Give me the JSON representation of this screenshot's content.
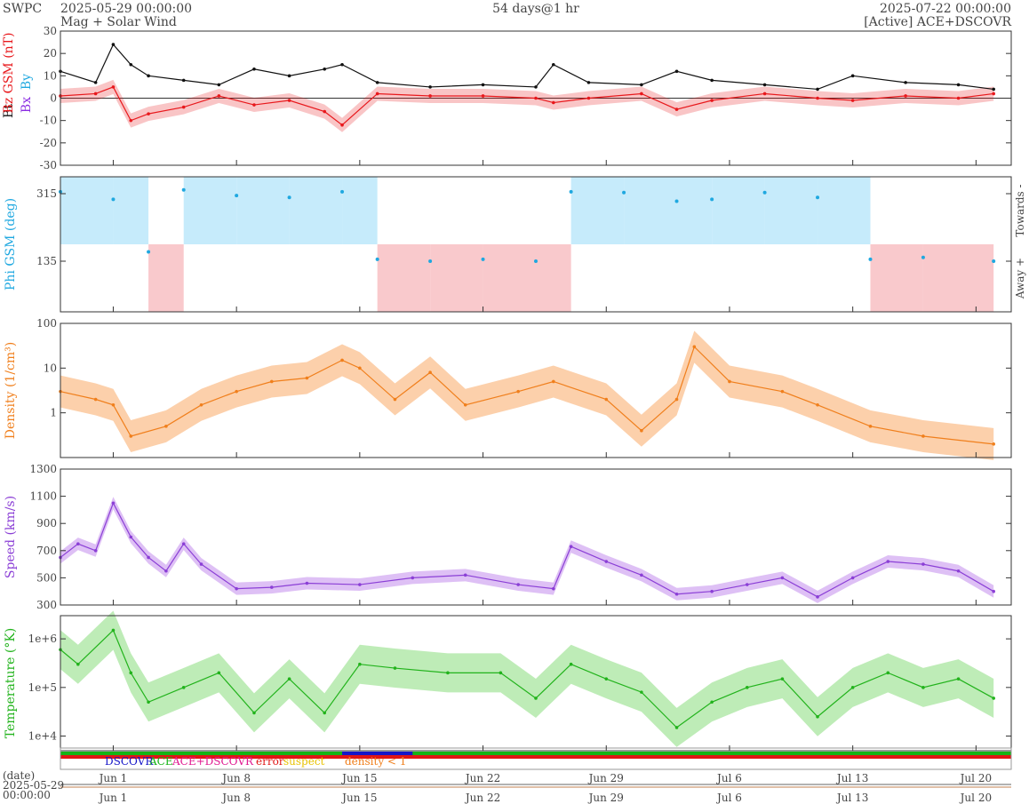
{
  "header": {
    "source": "SWPC",
    "start": "2025-05-29 00:00:00",
    "subtitle": "Mag + Solar Wind",
    "span": "54 days@1 hr",
    "end": "2025-07-22 00:00:00",
    "spacecraft": "[Active] ACE+DSCOVR"
  },
  "colors": {
    "bt": "#111111",
    "bz": "#e8181c",
    "bx": "#8a2be2",
    "by": "#1fa8e0",
    "phi": "#1fa8e0",
    "towards_band": "#c6ebfb",
    "away_band": "#f9c9cc",
    "density": "#f07f1c",
    "density_band": "#fbc08f",
    "speed": "#8b3fd6",
    "speed_band": "#d3abf1",
    "temperature": "#22b31c",
    "temperature_band": "#a8e59f",
    "dscovr": "#1515c8",
    "ace": "#15b315",
    "ace_dscovr": "#e01890",
    "error": "#e01515",
    "suspect": "#e8c200",
    "density_lt1": "#f07f1c"
  },
  "chart_data": [
    {
      "type": "line",
      "ylabel_parts": [
        "Bt",
        "Bz GSM (nT)",
        "Bx",
        "By"
      ],
      "ylim": [
        -30,
        30
      ],
      "yticks": [
        "30",
        "20",
        "10",
        "0",
        "-10",
        "-20",
        "-30"
      ],
      "x": [
        "2025-05-29",
        "2025-05-31",
        "2025-06-01",
        "2025-06-02",
        "2025-06-03",
        "2025-06-05",
        "2025-06-07",
        "2025-06-09",
        "2025-06-11",
        "2025-06-13",
        "2025-06-14",
        "2025-06-16",
        "2025-06-19",
        "2025-06-22",
        "2025-06-25",
        "2025-06-26",
        "2025-06-28",
        "2025-07-01",
        "2025-07-03",
        "2025-07-05",
        "2025-07-08",
        "2025-07-11",
        "2025-07-13",
        "2025-07-16",
        "2025-07-19",
        "2025-07-21"
      ],
      "series": [
        {
          "name": "Bt",
          "values": [
            12,
            7,
            24,
            15,
            10,
            8,
            6,
            13,
            10,
            13,
            15,
            7,
            5,
            6,
            5,
            15,
            7,
            6,
            12,
            8,
            6,
            4,
            10,
            7,
            6,
            4
          ]
        },
        {
          "name": "Bz GSM",
          "values": [
            1,
            2,
            5,
            -10,
            -7,
            -4,
            1,
            -3,
            -1,
            -6,
            -12,
            2,
            1,
            1,
            0,
            -2,
            0,
            2,
            -5,
            -1,
            2,
            0,
            -1,
            1,
            0,
            2
          ]
        }
      ]
    },
    {
      "type": "scatter",
      "ylabel": "Phi GSM (deg)",
      "yticks": [
        "315",
        "135"
      ],
      "right_labels": [
        "Towards -",
        "Away +"
      ],
      "x": [
        "2025-05-29",
        "2025-06-01",
        "2025-06-03",
        "2025-06-05",
        "2025-06-08",
        "2025-06-11",
        "2025-06-14",
        "2025-06-16",
        "2025-06-19",
        "2025-06-22",
        "2025-06-25",
        "2025-06-27",
        "2025-06-30",
        "2025-07-03",
        "2025-07-05",
        "2025-07-08",
        "2025-07-11",
        "2025-07-14",
        "2025-07-17",
        "2025-07-21"
      ],
      "series": [
        {
          "name": "Phi GSM",
          "values": [
            320,
            300,
            160,
            325,
            310,
            305,
            320,
            140,
            135,
            140,
            135,
            320,
            318,
            295,
            300,
            318,
            305,
            140,
            145,
            135
          ]
        }
      ]
    },
    {
      "type": "line",
      "ylabel": "Density (1/cm³)",
      "yscale": "log",
      "ylim": [
        0.1,
        100
      ],
      "yticks": [
        "100",
        "10",
        "1"
      ],
      "x": [
        "2025-05-29",
        "2025-05-31",
        "2025-06-01",
        "2025-06-02",
        "2025-06-04",
        "2025-06-06",
        "2025-06-08",
        "2025-06-10",
        "2025-06-12",
        "2025-06-14",
        "2025-06-15",
        "2025-06-17",
        "2025-06-19",
        "2025-06-21",
        "2025-06-24",
        "2025-06-26",
        "2025-06-29",
        "2025-07-01",
        "2025-07-03",
        "2025-07-04",
        "2025-07-06",
        "2025-07-09",
        "2025-07-11",
        "2025-07-14",
        "2025-07-17",
        "2025-07-21"
      ],
      "series": [
        {
          "name": "Density",
          "values": [
            3,
            2,
            1.5,
            0.3,
            0.5,
            1.5,
            3,
            5,
            6,
            15,
            10,
            2,
            8,
            1.5,
            3,
            5,
            2,
            0.4,
            2,
            30,
            5,
            3,
            1.5,
            0.5,
            0.3,
            0.2
          ]
        }
      ]
    },
    {
      "type": "line",
      "ylabel": "Speed (km/s)",
      "ylim": [
        300,
        1300
      ],
      "yticks": [
        "1300",
        "1100",
        "900",
        "700",
        "500",
        "300"
      ],
      "x": [
        "2025-05-29",
        "2025-05-30",
        "2025-05-31",
        "2025-06-01",
        "2025-06-02",
        "2025-06-03",
        "2025-06-04",
        "2025-06-05",
        "2025-06-06",
        "2025-06-08",
        "2025-06-10",
        "2025-06-12",
        "2025-06-15",
        "2025-06-18",
        "2025-06-21",
        "2025-06-24",
        "2025-06-26",
        "2025-06-27",
        "2025-06-29",
        "2025-07-01",
        "2025-07-03",
        "2025-07-05",
        "2025-07-07",
        "2025-07-09",
        "2025-07-11",
        "2025-07-13",
        "2025-07-15",
        "2025-07-17",
        "2025-07-19",
        "2025-07-21"
      ],
      "series": [
        {
          "name": "Speed",
          "values": [
            650,
            750,
            700,
            1050,
            800,
            650,
            550,
            750,
            600,
            420,
            430,
            460,
            450,
            500,
            520,
            450,
            420,
            730,
            620,
            520,
            380,
            400,
            450,
            500,
            360,
            500,
            620,
            600,
            550,
            400
          ]
        }
      ]
    },
    {
      "type": "line",
      "ylabel": "Temperature (°K)",
      "yscale": "log",
      "ylim": [
        5000,
        3000000
      ],
      "yticks": [
        "1e+6",
        "1e+5",
        "1e+4"
      ],
      "x": [
        "2025-05-29",
        "2025-05-30",
        "2025-06-01",
        "2025-06-02",
        "2025-06-03",
        "2025-06-05",
        "2025-06-07",
        "2025-06-09",
        "2025-06-11",
        "2025-06-13",
        "2025-06-15",
        "2025-06-17",
        "2025-06-20",
        "2025-06-23",
        "2025-06-25",
        "2025-06-27",
        "2025-06-29",
        "2025-07-01",
        "2025-07-03",
        "2025-07-05",
        "2025-07-07",
        "2025-07-09",
        "2025-07-11",
        "2025-07-13",
        "2025-07-15",
        "2025-07-17",
        "2025-07-19",
        "2025-07-21"
      ],
      "series": [
        {
          "name": "Temperature",
          "values": [
            600000,
            300000,
            1500000,
            200000,
            50000,
            100000,
            200000,
            30000,
            150000,
            30000,
            300000,
            250000,
            200000,
            200000,
            60000,
            300000,
            150000,
            80000,
            15000,
            50000,
            100000,
            150000,
            25000,
            100000,
            200000,
            100000,
            150000,
            60000
          ]
        }
      ]
    }
  ],
  "status_bar": {
    "legend": {
      "dscovr": "DSCOVR",
      "ace": "ACE",
      "ace_dscovr": "ACE+DSCOVR",
      "error": "error",
      "suspect": "suspect",
      "density_lt1": "density < 1"
    }
  },
  "x_axis": {
    "ticks": [
      "Jun 1",
      "Jun 8",
      "Jun 15",
      "Jun 22",
      "Jun 29",
      "Jul 6",
      "Jul 13",
      "Jul 20"
    ]
  },
  "date_axis": {
    "label": "(date)",
    "date": "2025-05-29",
    "time": "00:00:00"
  }
}
